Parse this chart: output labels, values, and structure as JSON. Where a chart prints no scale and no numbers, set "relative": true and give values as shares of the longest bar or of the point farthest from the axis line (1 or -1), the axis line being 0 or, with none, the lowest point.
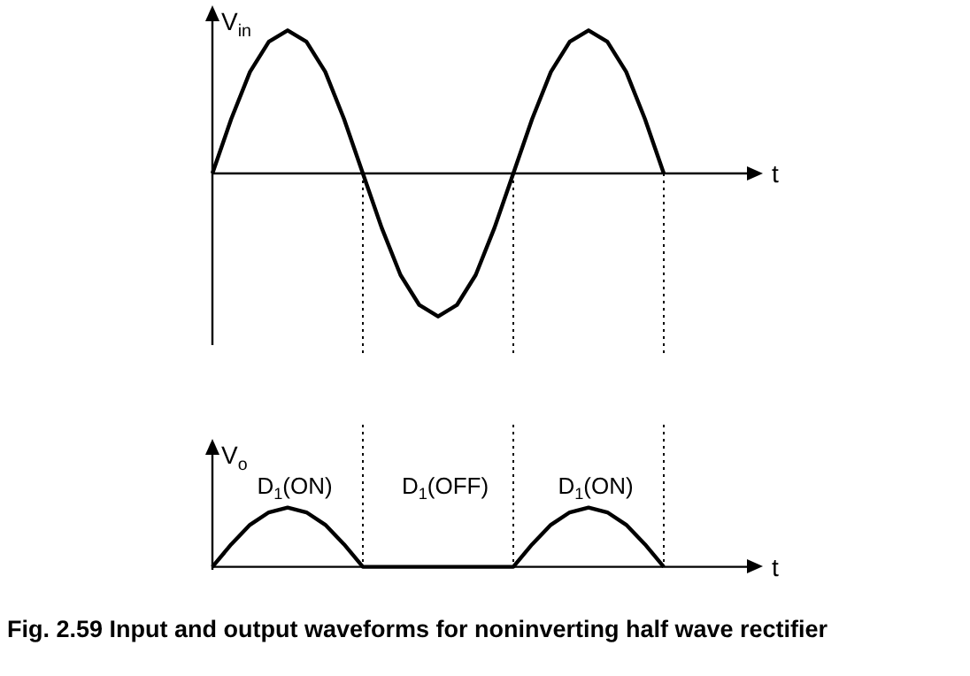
{
  "chart_data": [
    {
      "type": "line",
      "relative": true,
      "ylabel": "V$_{in}$",
      "xlabel": "t",
      "categories": [
        null,
        null,
        null,
        null,
        null,
        null,
        null,
        null,
        null,
        null,
        null,
        null,
        null,
        null,
        null,
        null,
        null,
        null,
        null,
        null,
        null,
        null,
        null,
        null,
        null
      ],
      "series": [
        {
          "color": "#000000",
          "values": [
            0,
            0.38,
            0.71,
            0.92,
            1,
            0.92,
            0.71,
            0.38,
            0,
            -0.38,
            -0.71,
            -0.92,
            -1,
            -0.92,
            -0.71,
            -0.38,
            0,
            0.38,
            0.71,
            0.92,
            1,
            0.92,
            0.71,
            0.38,
            0
          ]
        }
      ],
      "marker": "none",
      "line_style": "solid"
    },
    {
      "type": "line",
      "relative": true,
      "ylabel": "V$_{o}$",
      "xlabel": "t",
      "categories": [
        null,
        null,
        null,
        null,
        null,
        null,
        null,
        null,
        null,
        null,
        null,
        null,
        null,
        null,
        null,
        null,
        null,
        null,
        null,
        null,
        null,
        null,
        null,
        null,
        null
      ],
      "series": [
        {
          "color": "#000000",
          "values": [
            0,
            0.38,
            0.71,
            0.92,
            1,
            0.92,
            0.71,
            0.38,
            0,
            0,
            0,
            0,
            0,
            0,
            0,
            0,
            0,
            0.38,
            0.71,
            0.92,
            1,
            0.92,
            0.71,
            0.38,
            0
          ]
        }
      ],
      "annotations": [
        "D$_{1}$(ON)",
        "D$_{1}$(OFF)",
        "D$_{1}$(ON)",
        "Fig. 2.59 Input and output waveforms for noninverting half wave rectifier"
      ],
      "marker": "none",
      "line_style": "solid",
      "grid": "x"
    }
  ]
}
